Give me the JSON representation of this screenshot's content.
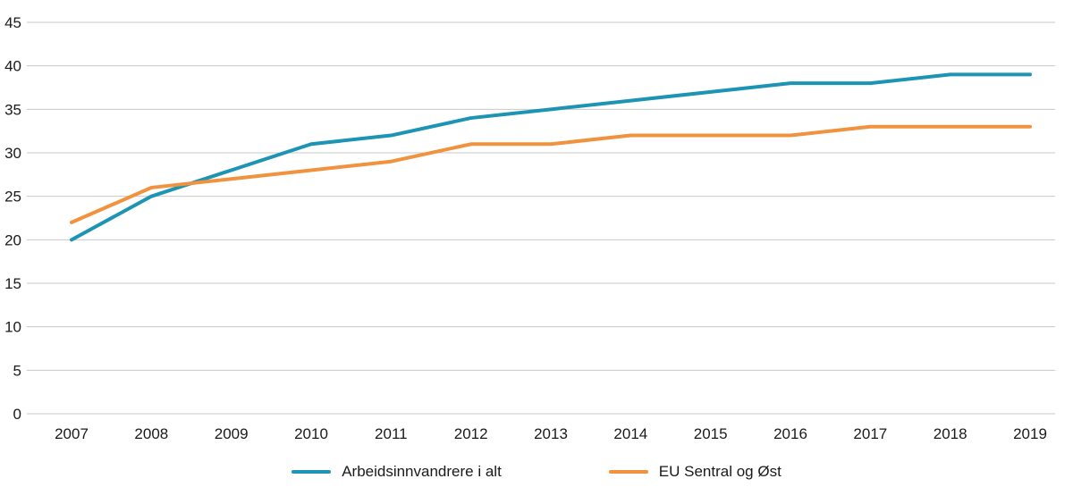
{
  "chart_data": {
    "type": "line",
    "title": "",
    "xlabel": "",
    "ylabel": "",
    "x": [
      2007,
      2008,
      2009,
      2010,
      2011,
      2012,
      2013,
      2014,
      2015,
      2016,
      2017,
      2018,
      2019
    ],
    "series": [
      {
        "name": "Arbeidsinnvandrere i alt",
        "color": "#1d94b4",
        "values": [
          20,
          25,
          28,
          31,
          32,
          34,
          35,
          36,
          37,
          38,
          38,
          39,
          39
        ]
      },
      {
        "name": "EU Sentral og Øst",
        "color": "#f0923e",
        "values": [
          22,
          26,
          27,
          28,
          29,
          31,
          31,
          32,
          32,
          32,
          33,
          33,
          33
        ]
      }
    ],
    "ylim": [
      0,
      45
    ],
    "ytick_step": 5,
    "yticks": [
      0,
      5,
      10,
      15,
      20,
      25,
      30,
      35,
      40,
      45
    ],
    "grid": true,
    "grid_color": "#c8c8c8",
    "axis_text_color": "#1a1a1a",
    "legend_position": "bottom"
  }
}
